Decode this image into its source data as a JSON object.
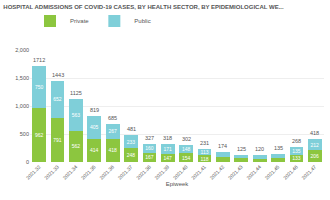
{
  "chart_data": {
    "type": "bar",
    "title": "HOSPITAL ADMISSIONS OF COVID-19 CASES, BY HEALTH SECTOR, BY EPIDEMIOLOGICAL WE...",
    "x_label": "Epiweek",
    "categories": [
      "2021.32",
      "2021.33",
      "2021.34",
      "2021.35",
      "2021.36",
      "2021.37",
      "2021.38",
      "2021.39",
      "2021.40",
      "2021.41",
      "2021.42",
      "2021.43",
      "2021.44",
      "2021.45",
      "2021.46",
      "2021.47"
    ],
    "series": [
      {
        "name": "Private",
        "color": "#8cc63f",
        "values": [
          962,
          791,
          562,
          414,
          418,
          248,
          167,
          147,
          154,
          118,
          88,
          63,
          60,
          68,
          133,
          206
        ],
        "value_labels": [
          "962",
          "791",
          "562",
          "414",
          "418",
          "248",
          "167",
          "147",
          "154",
          "118",
          null,
          null,
          null,
          null,
          "133",
          "206"
        ]
      },
      {
        "name": "Public",
        "color": "#7fcfd9",
        "values": [
          750,
          652,
          563,
          405,
          267,
          233,
          160,
          171,
          148,
          113,
          86,
          62,
          60,
          67,
          135,
          212
        ],
        "value_labels": [
          "750",
          "652",
          "563",
          "405",
          "267",
          "233",
          "160",
          "171",
          "148",
          "113",
          null,
          null,
          null,
          null,
          "135",
          "212"
        ]
      }
    ],
    "totals": [
      1712,
      1443,
      1125,
      819,
      685,
      481,
      327,
      318,
      302,
      231,
      174,
      125,
      120,
      135,
      268,
      418
    ],
    "ylim": [
      0,
      2000
    ],
    "yticks": [
      0,
      500,
      {
        "value": 1000,
        "label": "1,000"
      },
      {
        "value": 1500,
        "label": "1,500"
      },
      {
        "value": 2000,
        "label": "2,000"
      }
    ],
    "stacked": true,
    "data_labels": true,
    "grid": true,
    "legend": "top-left"
  }
}
